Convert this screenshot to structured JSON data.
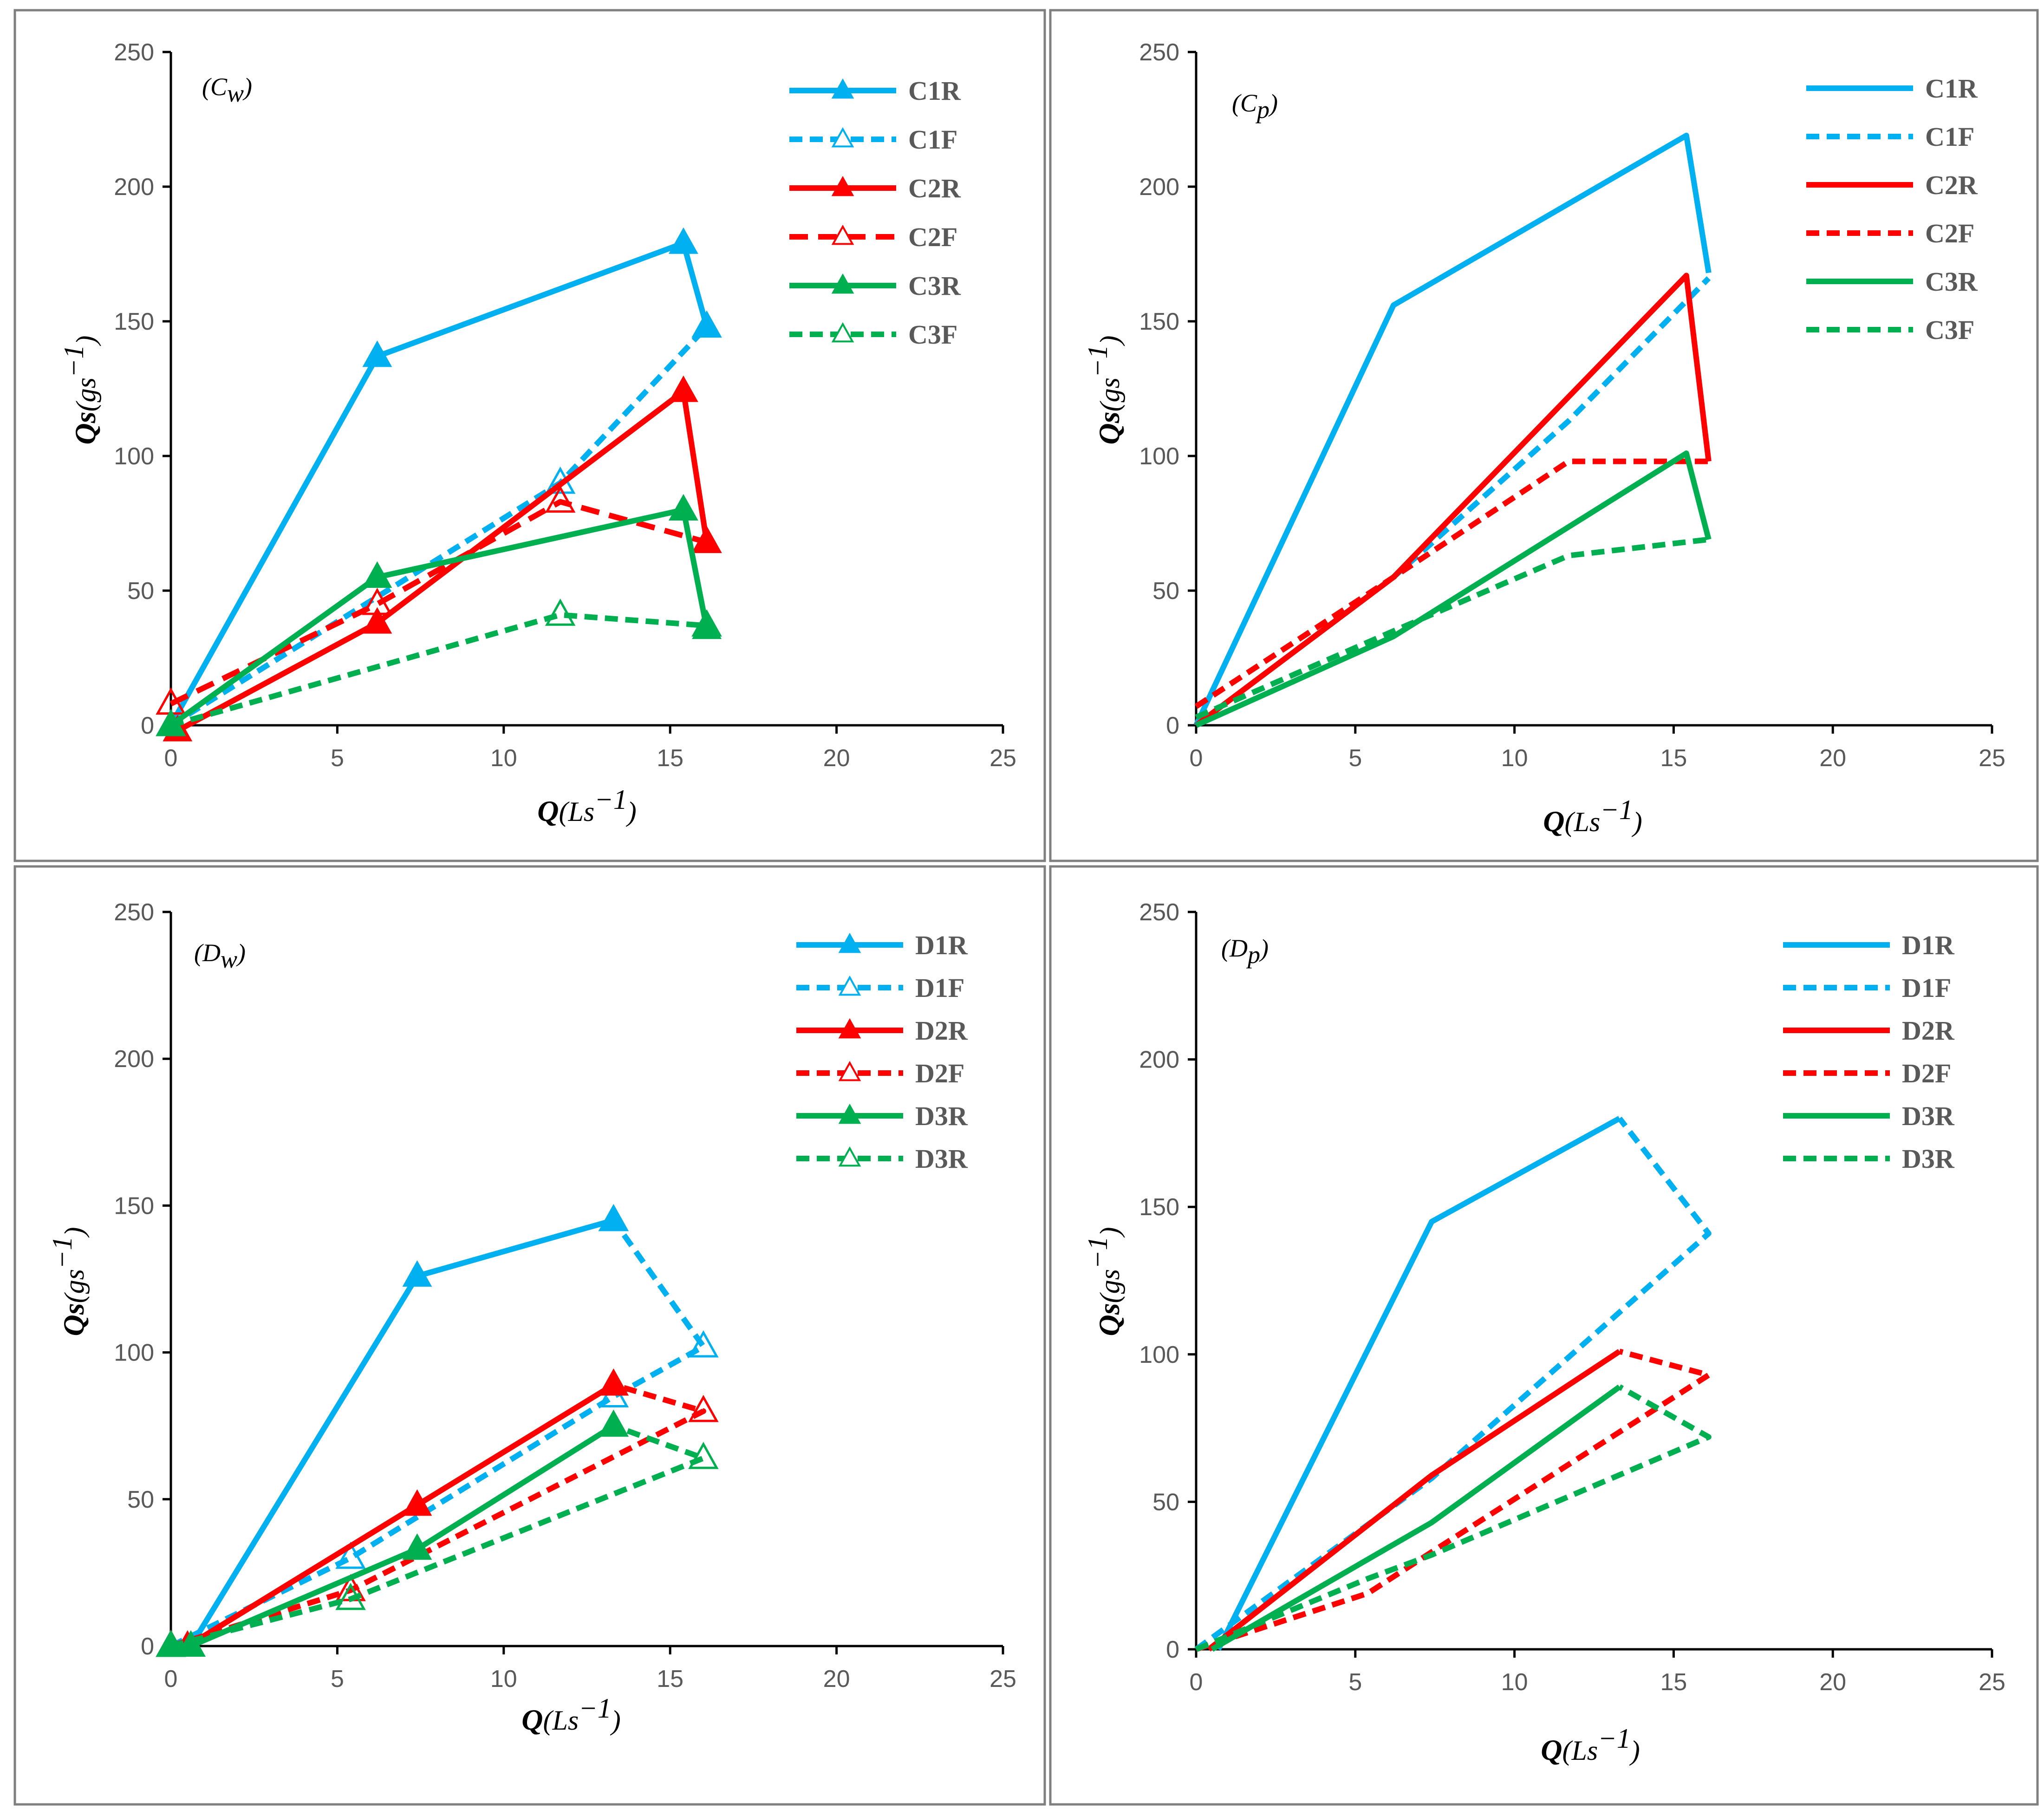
{
  "chart_data": [
    {
      "id": "Cw",
      "type": "line",
      "panel_label": "(C",
      "panel_label_sub": "w",
      "xlabel": "Q",
      "xunit": "(Ls",
      "xunit_sup": "−1",
      "ylabel": "Qs",
      "yunit": "(gs",
      "yunit_sup": "−1",
      "xlim": [
        0,
        25
      ],
      "ylim": [
        0,
        250
      ],
      "xticks": [
        0,
        5,
        10,
        15,
        20,
        25
      ],
      "yticks": [
        0,
        50,
        100,
        150,
        200,
        250
      ],
      "legend_position": "top-right",
      "series": [
        {
          "name": "C1R",
          "color": "#00b0f0",
          "dash": "solid",
          "marker": "triangle-filled",
          "points": [
            [
              0,
              0
            ],
            [
              6.2,
              137
            ],
            [
              15.4,
              179
            ],
            [
              16.1,
              148
            ]
          ]
        },
        {
          "name": "C1F",
          "color": "#00b0f0",
          "dash": "dashed",
          "marker": "triangle-open",
          "points": [
            [
              0,
              0
            ],
            [
              11.7,
              90
            ],
            [
              16.1,
              148
            ]
          ]
        },
        {
          "name": "C2R",
          "color": "#ff0000",
          "dash": "solid",
          "marker": "triangle-filled",
          "points": [
            [
              0.2,
              -2
            ],
            [
              6.2,
              38
            ],
            [
              15.4,
              124
            ],
            [
              16.1,
              68
            ]
          ]
        },
        {
          "name": "C2F",
          "color": "#ff0000",
          "dash": "dashed-heavy",
          "marker": "triangle-open",
          "points": [
            [
              0,
              8
            ],
            [
              6.2,
              45
            ],
            [
              11.7,
              83
            ],
            [
              16.1,
              68
            ]
          ]
        },
        {
          "name": "C3R",
          "color": "#00b050",
          "dash": "solid",
          "marker": "triangle-filled",
          "points": [
            [
              0,
              0
            ],
            [
              6.2,
              55
            ],
            [
              15.4,
              80
            ],
            [
              16.1,
              36
            ]
          ]
        },
        {
          "name": "C3F",
          "color": "#00b050",
          "dash": "dashed",
          "marker": "triangle-open",
          "points": [
            [
              0,
              0
            ],
            [
              11.7,
              41
            ],
            [
              16.1,
              37
            ]
          ]
        }
      ]
    },
    {
      "id": "Cp",
      "type": "line",
      "panel_label": "(C",
      "panel_label_sub": "p",
      "xlabel": "Q",
      "xunit": "(Ls",
      "xunit_sup": "−1",
      "ylabel": "Qs",
      "yunit": "(gs",
      "yunit_sup": "−1",
      "xlim": [
        0,
        25
      ],
      "ylim": [
        0,
        250
      ],
      "xticks": [
        0,
        5,
        10,
        15,
        20,
        25
      ],
      "yticks": [
        0,
        50,
        100,
        150,
        200,
        250
      ],
      "legend_position": "top-right",
      "series": [
        {
          "name": "C1R",
          "color": "#00b0f0",
          "dash": "solid",
          "marker": "none",
          "points": [
            [
              0,
              0
            ],
            [
              6.2,
              156
            ],
            [
              15.4,
              219
            ],
            [
              16.1,
              168
            ]
          ]
        },
        {
          "name": "C1F",
          "color": "#00b0f0",
          "dash": "dashed",
          "marker": "none",
          "points": [
            [
              0,
              0
            ],
            [
              6.2,
              55
            ],
            [
              11.7,
              113
            ],
            [
              16.1,
              166
            ]
          ]
        },
        {
          "name": "C2R",
          "color": "#ff0000",
          "dash": "solid",
          "marker": "none",
          "points": [
            [
              0,
              0
            ],
            [
              6.2,
              55
            ],
            [
              15.4,
              167
            ],
            [
              16.1,
              98
            ]
          ]
        },
        {
          "name": "C2F",
          "color": "#ff0000",
          "dash": "dashed",
          "marker": "none",
          "points": [
            [
              0,
              7
            ],
            [
              6.2,
              55
            ],
            [
              11.7,
              98
            ],
            [
              16.1,
              98
            ]
          ]
        },
        {
          "name": "C3R",
          "color": "#00b050",
          "dash": "solid",
          "marker": "none",
          "points": [
            [
              0,
              0
            ],
            [
              6.2,
              33
            ],
            [
              15.4,
              101
            ],
            [
              16.1,
              69
            ]
          ]
        },
        {
          "name": "C3F",
          "color": "#00b050",
          "dash": "dashed",
          "marker": "none",
          "points": [
            [
              0,
              3
            ],
            [
              6.2,
              35
            ],
            [
              11.7,
              63
            ],
            [
              16.1,
              69
            ]
          ]
        }
      ]
    },
    {
      "id": "Dw",
      "type": "line",
      "panel_label": "(D",
      "panel_label_sub": "w",
      "xlabel": "Q",
      "xunit": "(Ls",
      "xunit_sup": "−1",
      "ylabel": "Qs",
      "yunit": "(gs",
      "yunit_sup": "−1",
      "xlim": [
        0,
        25
      ],
      "ylim": [
        0,
        250
      ],
      "xticks": [
        0,
        5,
        10,
        15,
        20,
        25
      ],
      "yticks": [
        0,
        50,
        100,
        150,
        200,
        250
      ],
      "legend_position": "top-right",
      "series": [
        {
          "name": "D1R",
          "color": "#00b0f0",
          "dash": "solid",
          "marker": "triangle-filled",
          "points": [
            [
              0.6,
              0
            ],
            [
              7.4,
              126
            ],
            [
              13.3,
              145
            ]
          ]
        },
        {
          "name": "D1F",
          "color": "#00b0f0",
          "dash": "dashed",
          "marker": "triangle-open",
          "points": [
            [
              0,
              0
            ],
            [
              5.4,
              30
            ],
            [
              13.3,
              85
            ],
            [
              16,
              102
            ],
            [
              13.3,
              145
            ]
          ]
        },
        {
          "name": "D2R",
          "color": "#ff0000",
          "dash": "solid",
          "marker": "triangle-filled",
          "points": [
            [
              0.5,
              0
            ],
            [
              7.4,
              48
            ],
            [
              13.3,
              89
            ]
          ]
        },
        {
          "name": "D2F",
          "color": "#ff0000",
          "dash": "dashed",
          "marker": "triangle-open",
          "points": [
            [
              0,
              0
            ],
            [
              5.4,
              19
            ],
            [
              16,
              80
            ],
            [
              13.3,
              89
            ]
          ]
        },
        {
          "name": "D3R",
          "color": "#00b050",
          "dash": "solid",
          "marker": "triangle-filled",
          "points": [
            [
              0,
              0
            ],
            [
              0.6,
              0
            ],
            [
              7.4,
              33
            ],
            [
              13.3,
              75
            ]
          ]
        },
        {
          "name": "D3R",
          "color": "#00b050",
          "dash": "dashed",
          "marker": "triangle-open",
          "points": [
            [
              0,
              0
            ],
            [
              5.4,
              16
            ],
            [
              16,
              64
            ],
            [
              13.3,
              75
            ]
          ]
        }
      ]
    },
    {
      "id": "Dp",
      "type": "line",
      "panel_label": "(D",
      "panel_label_sub": "p",
      "xlabel": "Q",
      "xunit": "(Ls",
      "xunit_sup": "−1",
      "ylabel": "Qs",
      "yunit": "(gs",
      "yunit_sup": "−1",
      "xlim": [
        0,
        25
      ],
      "ylim": [
        0,
        250
      ],
      "xticks": [
        0,
        5,
        10,
        15,
        20,
        25
      ],
      "yticks": [
        0,
        50,
        100,
        150,
        200,
        250
      ],
      "legend_position": "top-right",
      "series": [
        {
          "name": "D1R",
          "color": "#00b0f0",
          "dash": "solid",
          "marker": "none",
          "points": [
            [
              0.7,
              0
            ],
            [
              7.4,
              145
            ],
            [
              13.3,
              180
            ]
          ]
        },
        {
          "name": "D1F",
          "color": "#00b0f0",
          "dash": "dashed",
          "marker": "none",
          "points": [
            [
              0,
              0
            ],
            [
              7.4,
              58
            ],
            [
              16.1,
              141
            ],
            [
              13.3,
              180
            ]
          ]
        },
        {
          "name": "D2R",
          "color": "#ff0000",
          "dash": "solid",
          "marker": "none",
          "points": [
            [
              0.4,
              0
            ],
            [
              7.4,
              59
            ],
            [
              13.3,
              101
            ]
          ]
        },
        {
          "name": "D2F",
          "color": "#ff0000",
          "dash": "dashed",
          "marker": "none",
          "points": [
            [
              0,
              0
            ],
            [
              5.4,
              19
            ],
            [
              7.4,
              33
            ],
            [
              16.1,
              93
            ],
            [
              13.3,
              101
            ]
          ]
        },
        {
          "name": "D3R",
          "color": "#00b050",
          "dash": "solid",
          "marker": "none",
          "points": [
            [
              0.5,
              0
            ],
            [
              7.4,
              43
            ],
            [
              13.3,
              89
            ]
          ]
        },
        {
          "name": "D3R",
          "color": "#00b050",
          "dash": "dashed",
          "marker": "none",
          "points": [
            [
              0,
              0
            ],
            [
              5.4,
              24
            ],
            [
              7.4,
              32
            ],
            [
              16.1,
              72
            ],
            [
              13.3,
              89
            ]
          ]
        }
      ]
    }
  ]
}
